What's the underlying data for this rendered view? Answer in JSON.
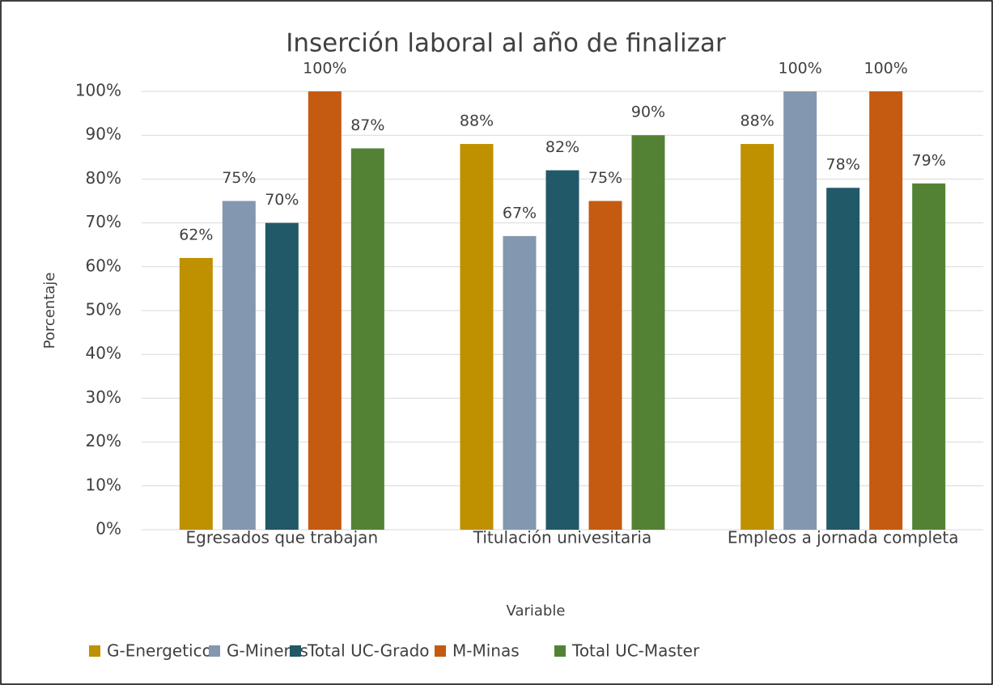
{
  "chart_data": {
    "type": "bar",
    "title": "Inserción laboral al año de finalizar",
    "x_label": "Variable",
    "y_label": "Porcentaje",
    "categories": [
      "Egresados que trabajan",
      "Titulación univesitaria",
      "Empleos a jornada completa"
    ],
    "series": [
      {
        "name": "G-Energeticos",
        "color": "#bf9000",
        "values": [
          62,
          88,
          88
        ],
        "value_labels": [
          "62%",
          "88%",
          "88%"
        ]
      },
      {
        "name": "G-Mineros",
        "color": "#8497b0",
        "values": [
          75,
          67,
          100
        ],
        "value_labels": [
          "75%",
          "67%",
          "100%"
        ]
      },
      {
        "name": "Total UC-Grado",
        "color": "#215968",
        "values": [
          70,
          82,
          78
        ],
        "value_labels": [
          "70%",
          "82%",
          "78%"
        ]
      },
      {
        "name": "M-Minas",
        "color": "#c55a11",
        "values": [
          100,
          75,
          100
        ],
        "value_labels": [
          "100%",
          "75%",
          "100%"
        ]
      },
      {
        "name": "Total UC-Master",
        "color": "#548235",
        "values": [
          87,
          90,
          79
        ],
        "value_labels": [
          "87%",
          "90%",
          "79%"
        ]
      }
    ],
    "ylim": [
      0,
      100
    ],
    "yticks": [
      {
        "value": 0,
        "label": "0%"
      },
      {
        "value": 10,
        "label": "10%"
      },
      {
        "value": 20,
        "label": "20%"
      },
      {
        "value": 30,
        "label": "30%"
      },
      {
        "value": 40,
        "label": "40%"
      },
      {
        "value": 50,
        "label": "50%"
      },
      {
        "value": 60,
        "label": "60%"
      },
      {
        "value": 70,
        "label": "70%"
      },
      {
        "value": 80,
        "label": "80%"
      },
      {
        "value": 90,
        "label": "90%"
      },
      {
        "value": 100,
        "label": "100%"
      }
    ],
    "grid": true,
    "legend": "bottom"
  }
}
